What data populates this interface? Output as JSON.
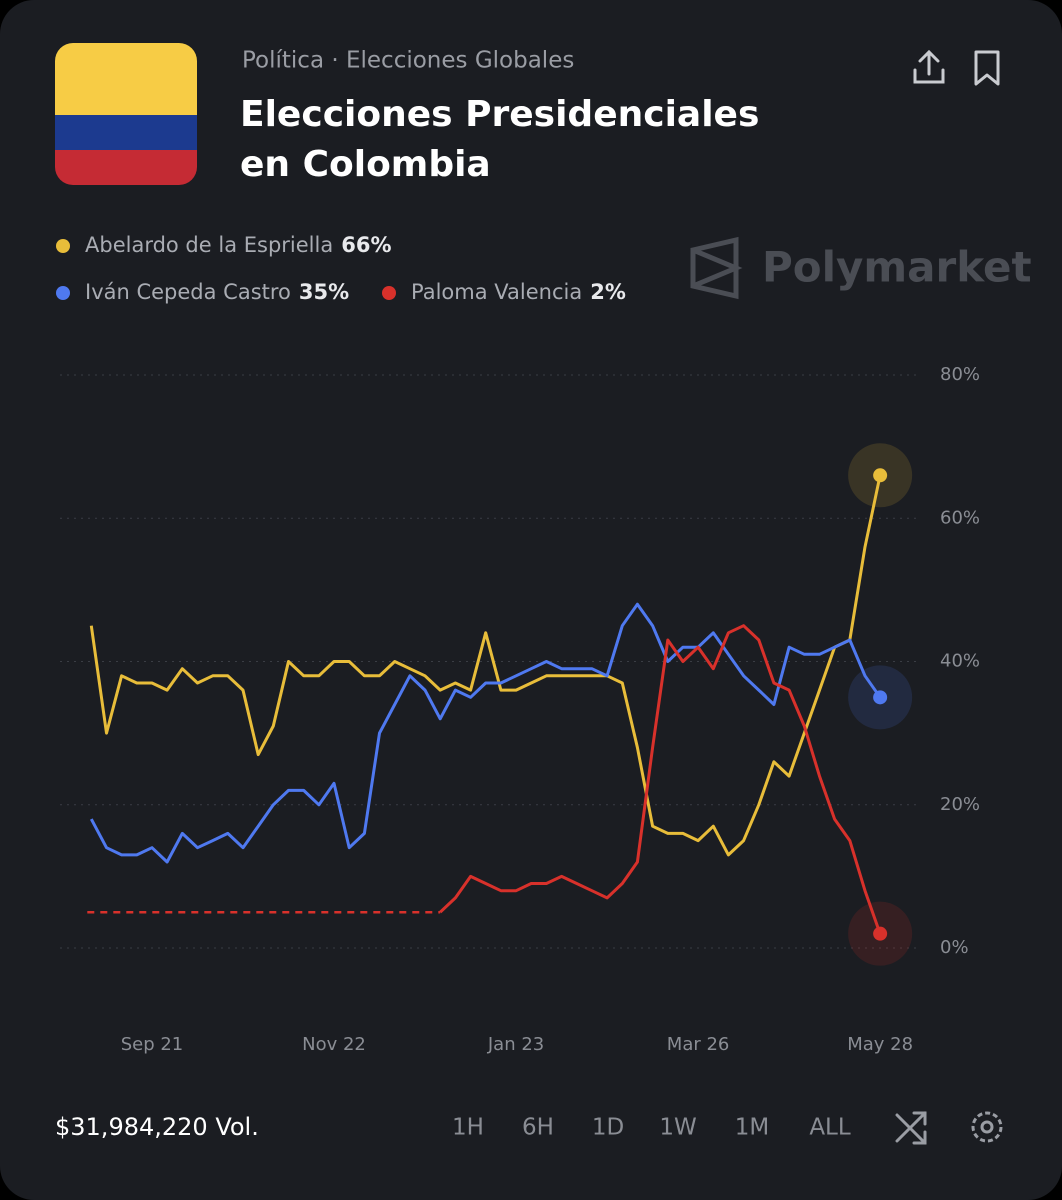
{
  "header": {
    "breadcrumb": "Política · Elecciones Globales",
    "title": "Elecciones Presidenciales en Colombia",
    "brand": "Polymarket"
  },
  "footer": {
    "volume": "$31,984,220 Vol.",
    "ranges": [
      "1H",
      "6H",
      "1D",
      "1W",
      "1M",
      "ALL"
    ]
  },
  "chart_data": {
    "type": "line",
    "categories": [
      null,
      null,
      null,
      null,
      "Sep 21",
      null,
      null,
      null,
      null,
      null,
      null,
      null,
      null,
      null,
      null,
      null,
      "Nov 22",
      null,
      null,
      null,
      null,
      null,
      null,
      null,
      null,
      null,
      null,
      null,
      "Jan 23",
      null,
      null,
      null,
      null,
      null,
      null,
      null,
      null,
      null,
      null,
      null,
      "Mar 26",
      null,
      null,
      null,
      null,
      null,
      null,
      null,
      null,
      null,
      null,
      null,
      "May 28"
    ],
    "series": [
      {
        "name": "Abelardo de la Espriella",
        "color": "#e8bd3a",
        "current": {
          "value": 66,
          "label": "66%"
        },
        "values": [
          45,
          30,
          38,
          37,
          37,
          36,
          39,
          37,
          38,
          38,
          36,
          27,
          31,
          40,
          38,
          38,
          40,
          40,
          38,
          38,
          40,
          39,
          38,
          36,
          37,
          36,
          44,
          36,
          36,
          37,
          38,
          38,
          38,
          38,
          38,
          37,
          28,
          17,
          16,
          16,
          15,
          17,
          13,
          15,
          20,
          26,
          24,
          30,
          36,
          42,
          43,
          56,
          66
        ]
      },
      {
        "name": "Iván Cepeda Castro",
        "color": "#4f79f0",
        "current": {
          "value": 35,
          "label": "35%"
        },
        "values": [
          18,
          14,
          13,
          13,
          14,
          12,
          16,
          14,
          15,
          16,
          14,
          17,
          20,
          22,
          22,
          20,
          23,
          14,
          16,
          30,
          34,
          38,
          36,
          32,
          36,
          35,
          37,
          37,
          38,
          39,
          40,
          39,
          39,
          39,
          38,
          45,
          48,
          45,
          40,
          42,
          42,
          44,
          41,
          38,
          36,
          34,
          42,
          41,
          41,
          42,
          43,
          38,
          35
        ]
      },
      {
        "name": "Paloma Valencia",
        "color": "#d8312b",
        "current": {
          "value": 2,
          "label": "2%"
        },
        "values": [
          null,
          null,
          null,
          null,
          null,
          null,
          null,
          null,
          null,
          null,
          null,
          null,
          null,
          null,
          null,
          null,
          null,
          null,
          null,
          null,
          null,
          null,
          null,
          5,
          7,
          10,
          9,
          8,
          8,
          9,
          9,
          10,
          9,
          8,
          7,
          9,
          12,
          28,
          43,
          40,
          42,
          39,
          44,
          45,
          43,
          37,
          36,
          31,
          24,
          18,
          15,
          8,
          2
        ]
      }
    ],
    "ylim": [
      0,
      80
    ],
    "yticks": [
      {
        "value": 0,
        "label": "0%"
      },
      {
        "value": 20,
        "label": "20%"
      },
      {
        "value": 40,
        "label": "40%"
      },
      {
        "value": 60,
        "label": "60%"
      },
      {
        "value": 80,
        "label": "80%"
      }
    ],
    "grid": true
  }
}
